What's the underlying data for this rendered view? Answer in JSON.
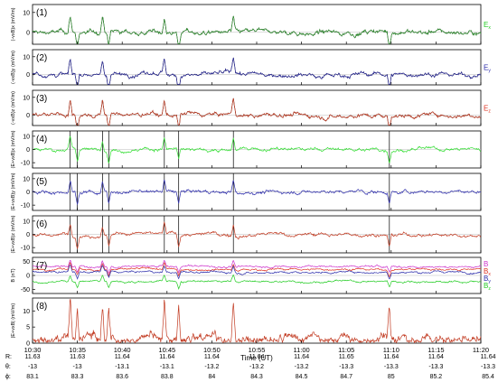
{
  "figure": {
    "xaxis_title": "Time (UT)",
    "ephemeris": [
      {
        "label": "R:",
        "values": [
          "11.63",
          "11.63",
          "11.64",
          "11.64",
          "11.64",
          "11.64",
          "11.64",
          "11.65",
          "11.64",
          "11.64",
          "11.64"
        ]
      },
      {
        "label": "θ:",
        "values": [
          "-13",
          "-13",
          "-13.1",
          "-13.1",
          "-13.2",
          "-13.2",
          "-13.2",
          "-13.3",
          "-13.3",
          "-13.3",
          "-13.3"
        ]
      },
      {
        "label": "ϕ:",
        "values": [
          "83.1",
          "83.3",
          "83.6",
          "83.8",
          "84",
          "84.3",
          "84.5",
          "84.7",
          "85",
          "85.2",
          "85.4"
        ]
      }
    ]
  },
  "chart_data": {
    "type": "line",
    "x_ticks": [
      "10:30",
      "10:35",
      "10:40",
      "10:45",
      "10:50",
      "10:55",
      "11:00",
      "11:05",
      "11:10",
      "11:15",
      "11:20"
    ],
    "xlim": [
      "10:30",
      "11:20"
    ],
    "panels": [
      {
        "id": "(1)",
        "ylabel": "(-vxB)x (mV/m)",
        "yticks": [
          "10",
          "0"
        ],
        "ylim": [
          -6,
          14
        ],
        "series": [
          {
            "name": "Ex",
            "color": "#2f8f2f"
          }
        ],
        "legend": [
          {
            "text": "E",
            "sub": "x",
            "color": "#22cc22"
          }
        ]
      },
      {
        "id": "(2)",
        "ylabel": "(-vxB)y (mV/m)",
        "yticks": [
          "10",
          "0"
        ],
        "ylim": [
          -6,
          14
        ],
        "series": [
          {
            "name": "Ey",
            "color": "#2a2a9a"
          }
        ],
        "legend": [
          {
            "text": "E",
            "sub": "y",
            "color": "#2a2aaa"
          }
        ]
      },
      {
        "id": "(3)",
        "ylabel": "(-vxB)z (mV/m)",
        "yticks": [
          "10",
          "0"
        ],
        "ylim": [
          -6,
          14
        ],
        "series": [
          {
            "name": "Ez",
            "color": "#c23b22"
          }
        ],
        "legend": [
          {
            "text": "E",
            "sub": "z",
            "color": "#dd3322"
          }
        ]
      },
      {
        "id": "(4)",
        "ylabel": "(E+vxB)x (mV/m)",
        "yticks": [
          "10",
          "0",
          "-10"
        ],
        "ylim": [
          -14,
          14
        ],
        "series": [
          {
            "name": "(E+vxB)x",
            "color": "#33dd33"
          }
        ],
        "legend": []
      },
      {
        "id": "(5)",
        "ylabel": "(E+vxB)y (mV/m)",
        "yticks": [
          "10",
          "0",
          "-10"
        ],
        "ylim": [
          -14,
          14
        ],
        "series": [
          {
            "name": "(E+vxB)y",
            "color": "#2a2aaa"
          }
        ],
        "legend": []
      },
      {
        "id": "(6)",
        "ylabel": "(E+vxB)z (mV/m)",
        "yticks": [
          "10",
          "0",
          "-10"
        ],
        "ylim": [
          -14,
          14
        ],
        "series": [
          {
            "name": "(E+vxB)z",
            "color": "#c23b22"
          }
        ],
        "legend": []
      },
      {
        "id": "(7)",
        "ylabel": "B (nT)",
        "yticks": [
          "50",
          "0",
          "-50"
        ],
        "ylim": [
          -65,
          65
        ],
        "series": [
          {
            "name": "B",
            "color": "#cc33cc"
          },
          {
            "name": "Bx",
            "color": "#dd3322"
          },
          {
            "name": "By",
            "color": "#2a2aaa"
          },
          {
            "name": "Bz",
            "color": "#22cc22"
          }
        ],
        "legend": [
          {
            "text": "B",
            "sub": "",
            "color": "#cc33cc"
          },
          {
            "text": "B",
            "sub": "x",
            "color": "#dd3322"
          },
          {
            "text": "B",
            "sub": "y",
            "color": "#2a2aaa"
          },
          {
            "text": "B",
            "sub": "z",
            "color": "#22cc22"
          }
        ]
      },
      {
        "id": "(8)",
        "ylabel": "|E+vxB| (mV/m)",
        "yticks": [
          "10",
          "5",
          "0"
        ],
        "ylim": [
          0,
          14
        ],
        "series": [
          {
            "name": "|E+vxB|",
            "color": "#c23b22"
          }
        ],
        "legend": []
      }
    ],
    "event_lines_time": [
      "10:34.2",
      "10:35.0",
      "10:37.8",
      "10:38.5",
      "10:44.7",
      "10:46.3",
      "10:52.4",
      "11:09.8"
    ]
  }
}
